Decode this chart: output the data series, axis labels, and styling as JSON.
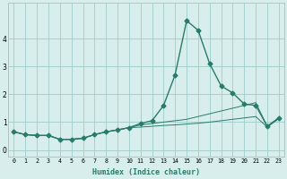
{
  "x": [
    0,
    1,
    2,
    3,
    4,
    5,
    6,
    7,
    8,
    9,
    10,
    11,
    12,
    13,
    14,
    15,
    16,
    17,
    18,
    19,
    20,
    21,
    22,
    23
  ],
  "y_main": [
    0.65,
    0.55,
    0.52,
    0.52,
    0.38,
    0.38,
    0.42,
    0.55,
    0.65,
    0.72,
    0.8,
    0.95,
    1.05,
    1.6,
    2.7,
    4.65,
    4.3,
    3.1,
    2.3,
    2.05,
    1.65,
    1.6,
    0.85,
    1.15
  ],
  "y_upper": [
    0.65,
    0.55,
    0.52,
    0.52,
    0.38,
    0.38,
    0.42,
    0.55,
    0.65,
    0.72,
    0.8,
    0.9,
    0.95,
    1.0,
    1.05,
    1.1,
    1.2,
    1.3,
    1.4,
    1.5,
    1.6,
    1.7,
    0.85,
    1.15
  ],
  "y_lower": [
    0.65,
    0.55,
    0.52,
    0.52,
    0.38,
    0.38,
    0.42,
    0.55,
    0.65,
    0.72,
    0.8,
    0.82,
    0.85,
    0.88,
    0.9,
    0.93,
    0.96,
    1.0,
    1.05,
    1.1,
    1.15,
    1.2,
    0.82,
    1.12
  ],
  "xlim": [
    -0.5,
    23.5
  ],
  "ylim": [
    -0.25,
    5.3
  ],
  "yticks": [
    0,
    1,
    2,
    3,
    4
  ],
  "xticks": [
    0,
    1,
    2,
    3,
    4,
    5,
    6,
    7,
    8,
    9,
    10,
    11,
    12,
    13,
    14,
    15,
    16,
    17,
    18,
    19,
    20,
    21,
    22,
    23
  ],
  "xlabel": "Humidex (Indice chaleur)",
  "line_color": "#2a7a6a",
  "bg_color": "#d8eeed",
  "grid_color": "#9eccc8",
  "marker": "D",
  "marker_size": 2.5,
  "linewidth": 1.0,
  "thin_linewidth": 0.7
}
